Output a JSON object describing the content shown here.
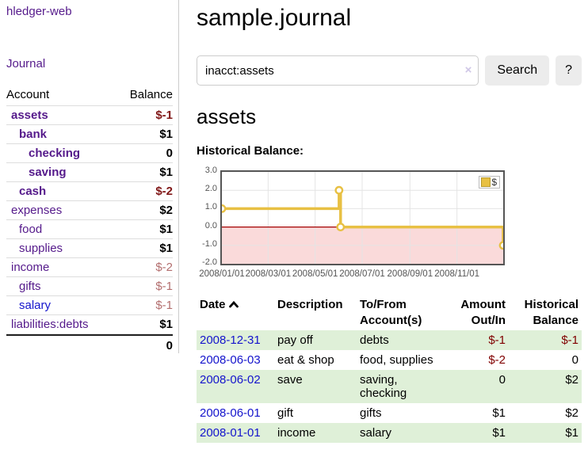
{
  "app": {
    "title": "hledger-web"
  },
  "colors": {
    "link_purple": "#551A8B",
    "link_blue": "#1414cc",
    "negative_strong": "#801717",
    "negative_soft": "#b36e6e",
    "negative_table": "#800000",
    "row_stripe_green": "#dff0d8",
    "chart_line_gold": "#e8c043",
    "chart_negative_fill": "#fadada",
    "chart_zero_line": "#a40000",
    "button_bg": "#ececec"
  },
  "sidebar": {
    "journal_label": "Journal",
    "headers": {
      "account": "Account",
      "balance": "Balance"
    },
    "accounts": [
      {
        "name": "assets",
        "balance": "$-1"
      },
      {
        "name": "bank",
        "balance": "$1"
      },
      {
        "name": "checking",
        "balance": "0"
      },
      {
        "name": "saving",
        "balance": "$1"
      },
      {
        "name": "cash",
        "balance": "$-2"
      },
      {
        "name": "expenses",
        "balance": "$2"
      },
      {
        "name": "food",
        "balance": "$1"
      },
      {
        "name": "supplies",
        "balance": "$1"
      },
      {
        "name": "income",
        "balance": "$-2"
      },
      {
        "name": "gifts",
        "balance": "$-1"
      },
      {
        "name": "salary",
        "balance": "$-1"
      },
      {
        "name": "liabilities:debts",
        "balance": "$1"
      }
    ],
    "total": "0"
  },
  "main": {
    "title": "sample.journal",
    "search": {
      "value": "inacct:assets",
      "clear_icon": "×",
      "search_button": "Search",
      "help_button": "?"
    },
    "account_heading": "assets",
    "chart_heading": "Historical Balance:",
    "register": {
      "headers": {
        "date": "Date",
        "description": "Description",
        "accounts": "To/From Account(s)",
        "amount": "Amount Out/In",
        "balance": "Historical Balance"
      },
      "rows": [
        {
          "date": "2008-12-31",
          "description": "pay off",
          "accounts": "debts",
          "amount": "$-1",
          "balance": "$-1"
        },
        {
          "date": "2008-06-03",
          "description": "eat & shop",
          "accounts": "food, supplies",
          "amount": "$-2",
          "balance": "0"
        },
        {
          "date": "2008-06-02",
          "description": "save",
          "accounts": "saving, checking",
          "amount": "0",
          "balance": "$2"
        },
        {
          "date": "2008-06-01",
          "description": "gift",
          "accounts": "gifts",
          "amount": "$1",
          "balance": "$2"
        },
        {
          "date": "2008-01-01",
          "description": "income",
          "accounts": "salary",
          "amount": "$1",
          "balance": "$1"
        }
      ]
    }
  },
  "chart_data": {
    "type": "line",
    "title": "Historical Balance:",
    "step": true,
    "x_range": [
      "2008-01-01",
      "2008-12-31"
    ],
    "ylim": [
      -2,
      3
    ],
    "grid": true,
    "negative_region_shaded": true,
    "legend": {
      "label": "$",
      "position": "top-right"
    },
    "series": [
      {
        "name": "$",
        "points": [
          {
            "date": "2008-01-01",
            "value": 1
          },
          {
            "date": "2008-06-01",
            "value": 2
          },
          {
            "date": "2008-06-03",
            "value": 0
          },
          {
            "date": "2008-12-31",
            "value": -1
          }
        ]
      }
    ],
    "yticks": [
      {
        "v": 3,
        "label": "3.0"
      },
      {
        "v": 2,
        "label": "2.0"
      },
      {
        "v": 1,
        "label": "1.0"
      },
      {
        "v": 0,
        "label": "0.0"
      },
      {
        "v": -1,
        "label": "-1.0"
      },
      {
        "v": -2,
        "label": "-2.0"
      }
    ],
    "xticks": [
      {
        "date": "2008-01-01",
        "label": "2008/01/01"
      },
      {
        "date": "2008-03-01",
        "label": "2008/03/01"
      },
      {
        "date": "2008-05-01",
        "label": "2008/05/01"
      },
      {
        "date": "2008-07-01",
        "label": "2008/07/01"
      },
      {
        "date": "2008-09-01",
        "label": "2008/09/01"
      },
      {
        "date": "2008-11-01",
        "label": "2008/11/01"
      }
    ]
  }
}
